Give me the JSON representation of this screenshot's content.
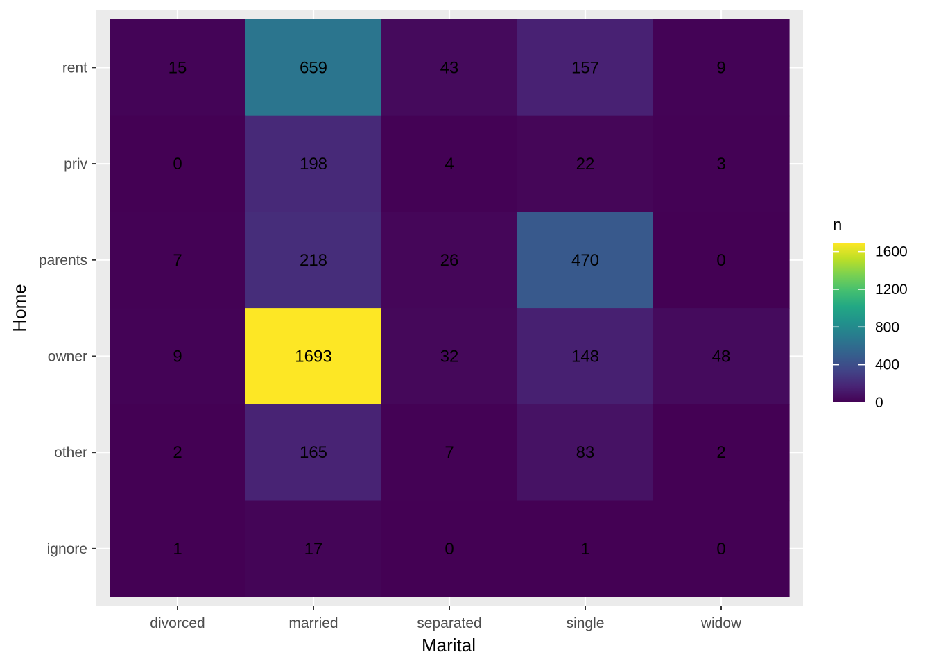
{
  "chart_data": {
    "type": "heatmap",
    "xlabel": "Marital",
    "ylabel": "Home",
    "x_categories": [
      "divorced",
      "married",
      "separated",
      "single",
      "widow"
    ],
    "y_categories": [
      "rent",
      "priv",
      "parents",
      "owner",
      "other",
      "ignore"
    ],
    "values": [
      [
        15,
        659,
        43,
        157,
        9
      ],
      [
        0,
        198,
        4,
        22,
        3
      ],
      [
        7,
        218,
        26,
        470,
        0
      ],
      [
        9,
        1693,
        32,
        148,
        48
      ],
      [
        2,
        165,
        7,
        83,
        2
      ],
      [
        1,
        17,
        0,
        1,
        0
      ]
    ],
    "colorscale": "viridis",
    "legend": {
      "title": "n",
      "ticks": [
        0,
        400,
        800,
        1200,
        1600
      ],
      "range": [
        0,
        1693
      ],
      "position": "right"
    },
    "grid": true
  }
}
